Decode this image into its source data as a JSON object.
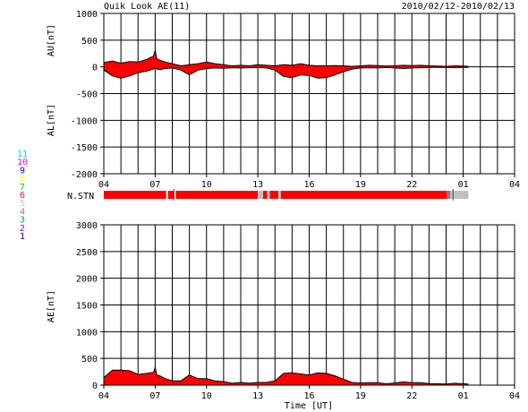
{
  "chart_data": {
    "type": "area",
    "title": "Quik Look AE(11)",
    "date_range": "2010/02/12-2010/02/13",
    "x_label": "Time [UT]",
    "x_ticks": [
      "04",
      "07",
      "10",
      "13",
      "16",
      "19",
      "22",
      "01",
      "04"
    ],
    "x_range_hours": [
      4,
      28
    ],
    "data_end_hour": 25.3,
    "station_legend": [
      {
        "label": "11",
        "color": "#00e0e0"
      },
      {
        "label": "10",
        "color": "#ff00ff"
      },
      {
        "label": "9",
        "color": "#0000ff"
      },
      {
        "label": "8",
        "color": "#ffff00"
      },
      {
        "label": "7",
        "color": "#00cc00"
      },
      {
        "label": "6",
        "color": "#ff0000"
      },
      {
        "label": "5",
        "color": "#c0c0c0"
      },
      {
        "label": "4",
        "color": "#808080"
      },
      {
        "label": "3",
        "color": "#00a0a0"
      },
      {
        "label": "2",
        "color": "#a000a0"
      },
      {
        "label": "1",
        "color": "#0000a0"
      }
    ],
    "panels": [
      {
        "name": "AU/AL",
        "y_labels": [
          "AU[nT]",
          "AL[nT]"
        ],
        "y_range": [
          -2000,
          1000
        ],
        "y_ticks": [
          1000,
          500,
          0,
          -500,
          -1000,
          -1500,
          -2000
        ],
        "series": [
          {
            "name": "AU",
            "x": [
              4.0,
              4.5,
              5.0,
              5.5,
              6.0,
              6.5,
              6.9,
              7.0,
              7.1,
              7.3,
              7.6,
              8.0,
              8.5,
              9.0,
              9.5,
              10.0,
              10.5,
              11.0,
              11.5,
              12.0,
              12.5,
              13.0,
              13.5,
              14.0,
              14.5,
              15.0,
              15.5,
              16.0,
              16.5,
              17.0,
              17.5,
              18.0,
              18.5,
              19.0,
              19.5,
              20.0,
              20.5,
              21.0,
              21.5,
              22.0,
              22.5,
              23.0,
              23.5,
              24.0,
              24.5,
              25.0,
              25.3
            ],
            "values": [
              80,
              110,
              70,
              100,
              90,
              140,
              200,
              310,
              150,
              120,
              90,
              60,
              20,
              40,
              60,
              90,
              60,
              40,
              20,
              30,
              20,
              40,
              30,
              20,
              40,
              30,
              60,
              30,
              20,
              20,
              25,
              20,
              10,
              20,
              30,
              25,
              15,
              20,
              30,
              25,
              30,
              20,
              15,
              10,
              20,
              15,
              10
            ]
          },
          {
            "name": "AL",
            "x": [
              4.0,
              4.5,
              5.0,
              5.5,
              6.0,
              6.5,
              6.9,
              7.0,
              7.1,
              7.3,
              7.6,
              8.0,
              8.5,
              9.0,
              9.5,
              10.0,
              10.5,
              11.0,
              11.5,
              12.0,
              12.5,
              13.0,
              13.5,
              14.0,
              14.5,
              15.0,
              15.5,
              16.0,
              16.5,
              17.0,
              17.5,
              18.0,
              18.5,
              19.0,
              19.5,
              20.0,
              20.5,
              21.0,
              21.5,
              22.0,
              22.5,
              23.0,
              23.5,
              24.0,
              24.5,
              25.0,
              25.3
            ],
            "values": [
              -60,
              -170,
              -210,
              -170,
              -110,
              -80,
              -40,
              -20,
              -40,
              -50,
              -30,
              -20,
              -60,
              -150,
              -60,
              -30,
              -20,
              -25,
              -15,
              -20,
              -15,
              -10,
              -20,
              -60,
              -180,
              -200,
              -150,
              -160,
              -210,
              -200,
              -150,
              -90,
              -40,
              -20,
              -15,
              -20,
              -10,
              -20,
              -30,
              -20,
              -15,
              -10,
              -10,
              -10,
              -15,
              -10,
              -10
            ]
          }
        ]
      },
      {
        "name": "AE",
        "y_labels": [
          "AE[nT]"
        ],
        "y_range": [
          0,
          3000
        ],
        "y_ticks": [
          3000,
          2500,
          2000,
          1500,
          1000,
          500,
          0
        ],
        "series": [
          {
            "name": "AE",
            "x": [
              4.0,
              4.5,
              5.0,
              5.5,
              6.0,
              6.5,
              6.9,
              7.0,
              7.1,
              7.3,
              7.6,
              8.0,
              8.5,
              9.0,
              9.5,
              10.0,
              10.5,
              11.0,
              11.5,
              12.0,
              12.5,
              13.0,
              13.5,
              14.0,
              14.5,
              15.0,
              15.5,
              16.0,
              16.5,
              17.0,
              17.5,
              18.0,
              18.5,
              19.0,
              19.5,
              20.0,
              20.5,
              21.0,
              21.5,
              22.0,
              22.5,
              23.0,
              23.5,
              24.0,
              24.5,
              25.0,
              25.3
            ],
            "values": [
              140,
              280,
              280,
              270,
              200,
              220,
              240,
              330,
              190,
              170,
              120,
              80,
              80,
              190,
              120,
              120,
              80,
              65,
              35,
              50,
              35,
              50,
              50,
              80,
              220,
              230,
              210,
              190,
              230,
              220,
              175,
              110,
              50,
              40,
              45,
              45,
              25,
              40,
              60,
              45,
              45,
              30,
              25,
              20,
              35,
              25,
              20
            ]
          }
        ]
      }
    ],
    "n_stn": {
      "label": "N.STN",
      "segments": [
        {
          "start": 4.0,
          "end": 7.65,
          "color": "#ff0000"
        },
        {
          "start": 7.65,
          "end": 7.75,
          "color": "#ffffff"
        },
        {
          "start": 7.75,
          "end": 8.1,
          "color": "#ff0000"
        },
        {
          "start": 8.1,
          "end": 8.2,
          "color": "#ffffff"
        },
        {
          "start": 8.2,
          "end": 13.0,
          "color": "#ff0000"
        },
        {
          "start": 13.0,
          "end": 13.3,
          "color": "#c0c0c0"
        },
        {
          "start": 13.3,
          "end": 13.55,
          "color": "#ff0000"
        },
        {
          "start": 13.55,
          "end": 13.7,
          "color": "#c0c0c0"
        },
        {
          "start": 13.7,
          "end": 14.2,
          "color": "#ff0000"
        },
        {
          "start": 14.2,
          "end": 14.35,
          "color": "#c0c0c0"
        },
        {
          "start": 14.35,
          "end": 24.05,
          "color": "#ff0000"
        },
        {
          "start": 24.05,
          "end": 24.25,
          "color": "#808080"
        },
        {
          "start": 24.25,
          "end": 25.3,
          "color": "#c0c0c0"
        }
      ],
      "ticks": [
        8.1,
        24.4
      ]
    }
  }
}
